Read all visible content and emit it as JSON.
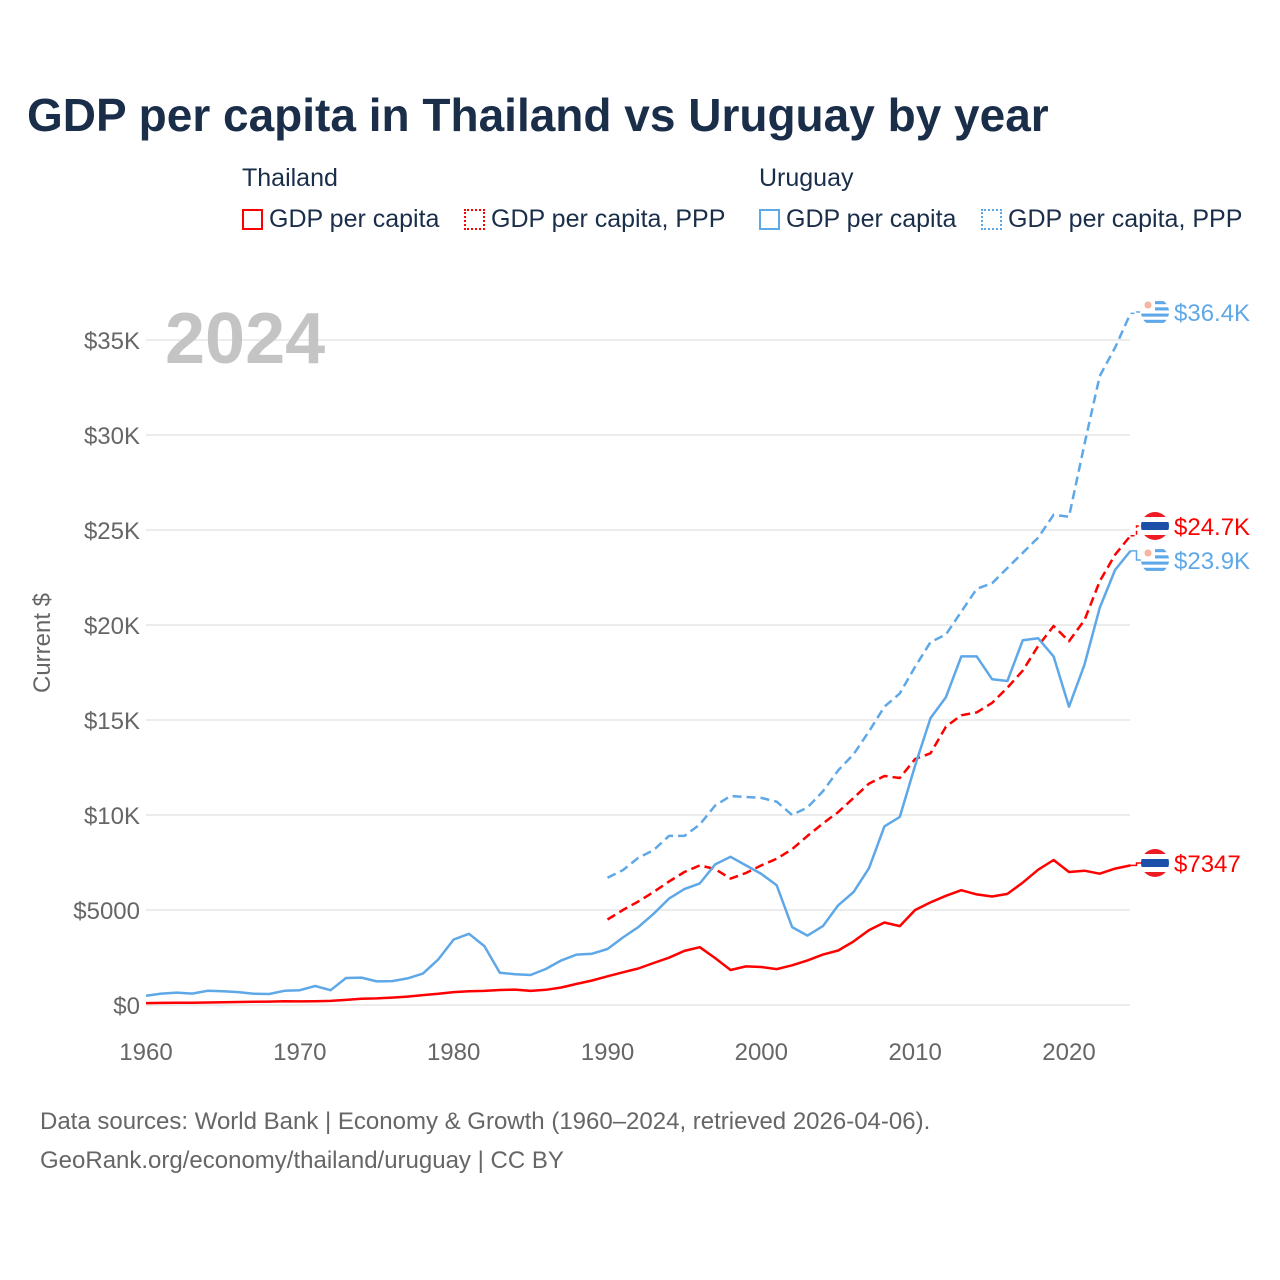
{
  "title": "GDP per capita in Thailand vs Uruguay by year",
  "legend": {
    "groups": [
      {
        "name": "Thailand",
        "items": [
          "GDP per capita",
          "GDP per capita, PPP"
        ],
        "color": "#ff0000"
      },
      {
        "name": "Uruguay",
        "items": [
          "GDP per capita",
          "GDP per capita, PPP"
        ],
        "color": "#5fa8e8"
      }
    ]
  },
  "source_line1": "Data sources: World Bank | Economy & Growth (1960–2024, retrieved 2026-04-06).",
  "source_line2": "GeoRank.org/economy/thailand/uruguay | CC BY",
  "chart_data": {
    "type": "line",
    "title": "GDP per capita in Thailand vs Uruguay by year",
    "ylabel": "Current $",
    "year_watermark": "2024",
    "xlim": [
      1960,
      2024
    ],
    "ylim": [
      0,
      37000
    ],
    "xticks": [
      1960,
      1970,
      1980,
      1990,
      2000,
      2010,
      2020
    ],
    "yticks": [
      0,
      5000,
      10000,
      15000,
      20000,
      25000,
      30000,
      35000
    ],
    "ytick_labels": [
      "$0",
      "$5000",
      "$10K",
      "$15K",
      "$20K",
      "$25K",
      "$30K",
      "$35K"
    ],
    "grid": true,
    "series": [
      {
        "name": "Thailand GDP per capita",
        "color": "#ff0000",
        "dash": false,
        "start": 1960,
        "end_label": "$7347",
        "values": [
          101,
          110,
          116,
          122,
          130,
          140,
          160,
          170,
          180,
          195,
          192,
          195,
          215,
          270,
          330,
          350,
          390,
          440,
          520,
          590,
          680,
          720,
          740,
          790,
          810,
          740,
          800,
          920,
          1110,
          1290,
          1510,
          1720,
          1920,
          2210,
          2490,
          2850,
          3040,
          2470,
          1840,
          2030,
          2000,
          1890,
          2090,
          2350,
          2650,
          2870,
          3350,
          3940,
          4340,
          4150,
          5000,
          5400,
          5750,
          6040,
          5820,
          5710,
          5850,
          6440,
          7120,
          7630,
          7000,
          7070,
          6910,
          7180,
          7347
        ]
      },
      {
        "name": "Thailand GDP per capita, PPP",
        "color": "#ff0000",
        "dash": true,
        "start": 1990,
        "end_label": "$24.7K",
        "values": [
          4500,
          5000,
          5450,
          5950,
          6500,
          7000,
          7350,
          7150,
          6650,
          6950,
          7350,
          7700,
          8200,
          8900,
          9550,
          10150,
          10900,
          11650,
          12050,
          11950,
          12950,
          13250,
          14650,
          15250,
          15400,
          15900,
          16700,
          17600,
          18900,
          19950,
          19150,
          20250,
          22300,
          23700,
          24700
        ]
      },
      {
        "name": "Uruguay GDP per capita",
        "color": "#5fa8e8",
        "dash": false,
        "start": 1960,
        "end_label": "$23.9K",
        "values": [
          490,
          600,
          650,
          600,
          750,
          720,
          680,
          590,
          580,
          750,
          780,
          1000,
          780,
          1420,
          1440,
          1240,
          1260,
          1400,
          1650,
          2400,
          3450,
          3750,
          3100,
          1700,
          1620,
          1580,
          1900,
          2350,
          2650,
          2700,
          2950,
          3550,
          4100,
          4800,
          5600,
          6100,
          6400,
          7400,
          7800,
          7350,
          6900,
          6300,
          4100,
          3650,
          4150,
          5250,
          5950,
          7200,
          9400,
          9900,
          12600,
          15100,
          16200,
          18350,
          18350,
          17150,
          17050,
          19200,
          19300,
          18350,
          15700,
          17900,
          20900,
          22900,
          23900
        ]
      },
      {
        "name": "Uruguay GDP per capita, PPP",
        "color": "#5fa8e8",
        "dash": true,
        "start": 1990,
        "end_label": "$36.4K",
        "values": [
          6700,
          7100,
          7750,
          8150,
          8900,
          8900,
          9500,
          10500,
          11000,
          10950,
          10900,
          10700,
          10000,
          10400,
          11250,
          12350,
          13200,
          14400,
          15700,
          16400,
          17800,
          19100,
          19500,
          20700,
          21900,
          22200,
          23000,
          23800,
          24600,
          25800,
          25700,
          29500,
          33100,
          34600,
          36400
        ]
      }
    ]
  }
}
